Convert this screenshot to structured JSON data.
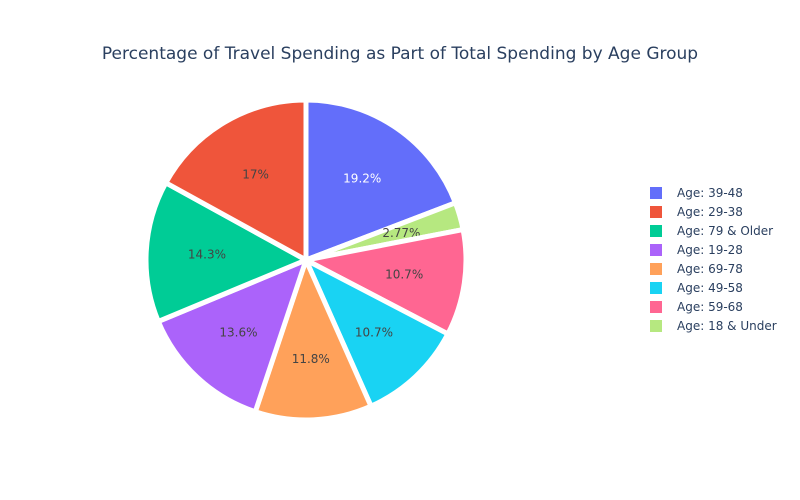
{
  "chart_data": {
    "type": "pie",
    "title": "Percentage of Travel Spending as Part of Total Spending by Age Group",
    "legend_placement": "right",
    "slices": [
      {
        "label": "Age: 39-48",
        "value": 19.2,
        "text": "19.2%",
        "color": "#636efa",
        "text_color": "#ffffff"
      },
      {
        "label": "Age: 18 & Under",
        "value": 2.77,
        "text": "2.77%",
        "color": "#b6e880",
        "text_color": "#444444"
      },
      {
        "label": "Age: 59-68",
        "value": 10.7,
        "text": "10.7%",
        "color": "#ff6692",
        "text_color": "#444444"
      },
      {
        "label": "Age: 49-58",
        "value": 10.7,
        "text": "10.7%",
        "color": "#19d3f3",
        "text_color": "#444444"
      },
      {
        "label": "Age: 69-78",
        "value": 11.8,
        "text": "11.8%",
        "color": "#ffa15a",
        "text_color": "#444444"
      },
      {
        "label": "Age: 19-28",
        "value": 13.6,
        "text": "13.6%",
        "color": "#ab63fa",
        "text_color": "#444444"
      },
      {
        "label": "Age: 79 & Older",
        "value": 14.3,
        "text": "14.3%",
        "color": "#00cc96",
        "text_color": "#444444"
      },
      {
        "label": "Age: 29-38",
        "value": 17.0,
        "text": "17%",
        "color": "#ef553b",
        "text_color": "#444444"
      }
    ],
    "legend": [
      {
        "label": "Age: 39-48",
        "color": "#636efa"
      },
      {
        "label": "Age: 29-38",
        "color": "#ef553b"
      },
      {
        "label": "Age: 79 & Older",
        "color": "#00cc96"
      },
      {
        "label": "Age: 19-28",
        "color": "#ab63fa"
      },
      {
        "label": "Age: 69-78",
        "color": "#ffa15a"
      },
      {
        "label": "Age: 49-58",
        "color": "#19d3f3"
      },
      {
        "label": "Age: 59-68",
        "color": "#ff6692"
      },
      {
        "label": "Age: 18 & Under",
        "color": "#b6e880"
      }
    ]
  }
}
